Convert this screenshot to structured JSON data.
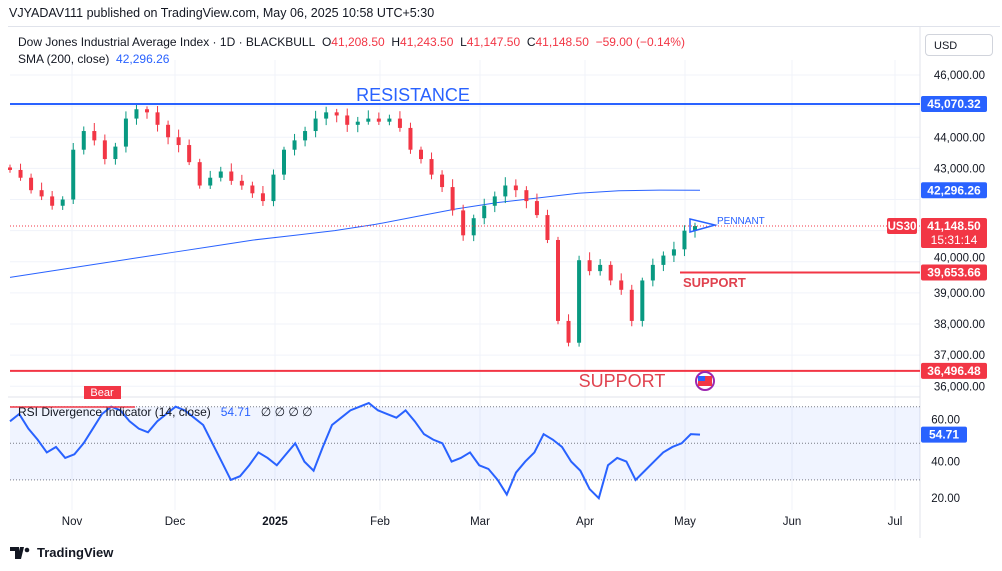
{
  "header": {
    "published": "VJYADAV111 published on TradingView.com, May 06, 2025 10:58 UTC+5:30"
  },
  "legend": {
    "symbol": "Dow Jones Industrial Average Index · 1D · BLACKBULL",
    "o_label": "O",
    "o": "41,208.50",
    "h_label": "H",
    "h": "41,243.50",
    "l_label": "L",
    "l": "41,147.50",
    "c_label": "C",
    "c": "41,148.50",
    "change": "−59.00 (−0.14%)",
    "sma_label": "SMA (200, close)",
    "sma_value": "42,296.26"
  },
  "currency": "USD",
  "price_axis": [
    "46,000.00",
    "44,000.00",
    "43,000.00",
    "40,000.00",
    "39,000.00",
    "38,000.00",
    "37,000.00",
    "36,000.00"
  ],
  "price_axis_values": [
    46000,
    44000,
    43000,
    40000,
    39000,
    38000,
    37000,
    36000
  ],
  "labels": {
    "resistance": "RESISTANCE",
    "support_high": "SUPPORT",
    "support_low": "SUPPORT",
    "pennant": "PENNANT",
    "bear": "Bear",
    "symbol_tag": "US30",
    "countdown": "15:31:14"
  },
  "levels": {
    "resistance": {
      "value": 45070.32,
      "label": "45,070.32"
    },
    "sma": {
      "value": 42296.26,
      "label": "42,296.26"
    },
    "last": {
      "value": 41148.5,
      "label": "41,148.50"
    },
    "support_high": {
      "value": 39653.66,
      "label": "39,653.66"
    },
    "support_low": {
      "value": 36496.48,
      "label": "36,496.48"
    }
  },
  "rsi": {
    "title": "RSI Divergence Indicator (14, close)",
    "value": "54.71",
    "extras": "∅ ∅ ∅ ∅",
    "axis": [
      "60.00",
      "40.00",
      "20.00"
    ],
    "axis_values": [
      60,
      40,
      20
    ],
    "value_num": 54.71,
    "series": [
      62,
      66,
      58,
      52,
      45,
      48,
      42,
      44,
      50,
      58,
      66,
      70,
      68,
      62,
      58,
      56,
      62,
      66,
      70,
      68,
      64,
      60,
      50,
      40,
      30,
      32,
      38,
      45,
      42,
      38,
      44,
      50,
      40,
      35,
      48,
      60,
      64,
      68,
      70,
      72,
      68,
      66,
      64,
      68,
      62,
      55,
      52,
      50,
      40,
      42,
      45,
      38,
      36,
      30,
      22,
      34,
      40,
      45,
      55,
      52,
      48,
      40,
      35,
      25,
      20,
      38,
      42,
      40,
      30,
      35,
      40,
      45,
      48,
      50,
      55,
      54.71
    ]
  },
  "time_axis": [
    "Nov",
    "Dec",
    "2025",
    "Feb",
    "Mar",
    "Apr",
    "May",
    "Jun",
    "Jul"
  ],
  "chart_data": {
    "type": "candlestick",
    "closes": [
      42950,
      42700,
      42300,
      42100,
      41800,
      42000,
      43600,
      44200,
      43900,
      43300,
      43700,
      44600,
      44900,
      44800,
      44400,
      44000,
      43750,
      43200,
      42450,
      42700,
      42900,
      42600,
      42450,
      42200,
      41950,
      42800,
      43600,
      43900,
      44200,
      44600,
      44800,
      44700,
      44400,
      44500,
      44600,
      44500,
      44600,
      44300,
      43600,
      43300,
      42800,
      42400,
      41650,
      40850,
      41400,
      41800,
      42100,
      42450,
      42300,
      41950,
      41500,
      40700,
      38100,
      37400,
      40050,
      39700,
      39900,
      39400,
      39100,
      38100,
      39400,
      39900,
      40200,
      40400,
      41000,
      41148.5
    ],
    "sma": [
      39500,
      39700,
      39900,
      40100,
      40300,
      40500,
      40700,
      40850,
      41000,
      41200,
      41450,
      41700,
      41900,
      42050,
      42200,
      42280,
      42300,
      42296.26
    ],
    "ylim": [
      35700,
      46600
    ]
  },
  "footer": {
    "brand": "TradingView"
  },
  "colors": {
    "up": "#089981",
    "down": "#f23645",
    "sma": "#2962ff",
    "resistance": "#2962ff",
    "support": "#f23645",
    "rsi": "#2962ff"
  }
}
